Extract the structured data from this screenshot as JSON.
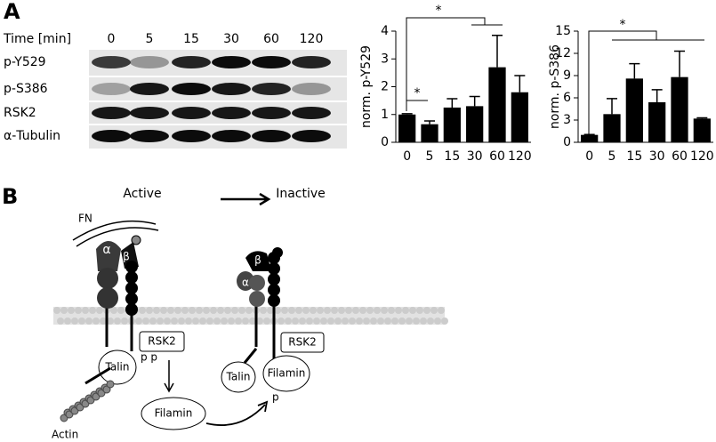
{
  "panel_a": {
    "label": "A",
    "time_label": "Time [min]",
    "lanes": [
      "0",
      "5",
      "15",
      "30",
      "60",
      "120"
    ],
    "rows": [
      "p-Y529",
      "p-S386",
      "RSK2",
      "α-Tubulin"
    ]
  },
  "chart_data": [
    {
      "type": "bar",
      "ylabel": "norm. p-Y529",
      "categories": [
        "0",
        "5",
        "15",
        "30",
        "60",
        "120"
      ],
      "values": [
        1.0,
        0.65,
        1.25,
        1.3,
        2.7,
        1.8
      ],
      "errors": [
        0.03,
        0.12,
        0.32,
        0.35,
        1.15,
        0.6
      ],
      "color": "#000000",
      "ylim": [
        0,
        4
      ],
      "yticks": [
        0,
        1,
        2,
        3,
        4
      ],
      "annotations": [
        "*",
        "*"
      ]
    },
    {
      "type": "bar",
      "ylabel": "norm. p-S386",
      "categories": [
        "0",
        "5",
        "15",
        "30",
        "60",
        "120"
      ],
      "values": [
        1.0,
        3.8,
        8.6,
        5.4,
        8.8,
        3.2
      ],
      "errors": [
        0.05,
        2.1,
        2.0,
        1.7,
        3.5,
        0.1
      ],
      "color": "#000000",
      "ylim": [
        0,
        15
      ],
      "yticks": [
        0,
        3,
        6,
        9,
        12,
        15
      ],
      "annotations": [
        "*"
      ]
    }
  ],
  "panel_b": {
    "label": "B",
    "active": "Active",
    "inactive": "Inactive",
    "fn": "FN",
    "alpha": "α",
    "beta": "β",
    "rsk2": "RSK2",
    "talin": "Talin",
    "filamin": "Filamin",
    "pp": "p p",
    "p": "p",
    "actin": "Actin"
  }
}
